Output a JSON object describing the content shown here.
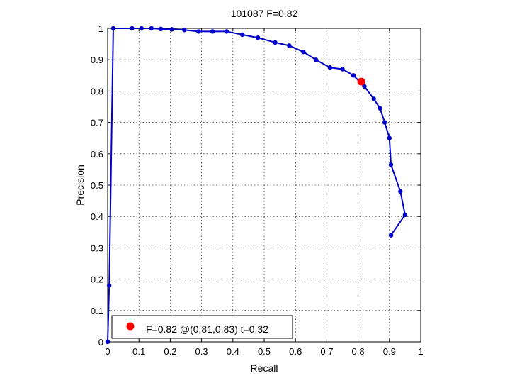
{
  "chart_data": {
    "type": "line",
    "title": "101087 F=0.82",
    "xlabel": "Recall",
    "ylabel": "Precision",
    "xlim": [
      0,
      1
    ],
    "ylim": [
      0,
      1
    ],
    "grid": true,
    "x_ticks": [
      "0",
      "0.1",
      "0.2",
      "0.3",
      "0.4",
      "0.5",
      "0.6",
      "0.7",
      "0.8",
      "0.9",
      "1"
    ],
    "y_ticks": [
      "0",
      "0.1",
      "0.2",
      "0.3",
      "0.4",
      "0.5",
      "0.6",
      "0.7",
      "0.8",
      "0.9",
      "1"
    ],
    "legend_position": "bottom-left",
    "series": [
      {
        "color": "#0000cc",
        "x": [
          0,
          0.005,
          0.018,
          0.078,
          0.108,
          0.14,
          0.17,
          0.205,
          0.245,
          0.29,
          0.335,
          0.38,
          0.43,
          0.48,
          0.535,
          0.58,
          0.625,
          0.665,
          0.71,
          0.75,
          0.785,
          0.82,
          0.85,
          0.87,
          0.885,
          0.9,
          0.905,
          0.935,
          0.95,
          0.905
        ],
        "y": [
          0,
          0.18,
          1.0,
          1.0,
          1.0,
          1.0,
          0.998,
          0.997,
          0.995,
          0.99,
          0.99,
          0.99,
          0.98,
          0.97,
          0.955,
          0.945,
          0.925,
          0.9,
          0.875,
          0.87,
          0.85,
          0.815,
          0.775,
          0.745,
          0.7,
          0.65,
          0.565,
          0.48,
          0.405,
          0.34
        ]
      }
    ],
    "highlight": {
      "color": "#ff0000",
      "x": 0.81,
      "y": 0.83,
      "legend_label": "F=0.82 @(0.81,0.83) t=0.32"
    }
  }
}
